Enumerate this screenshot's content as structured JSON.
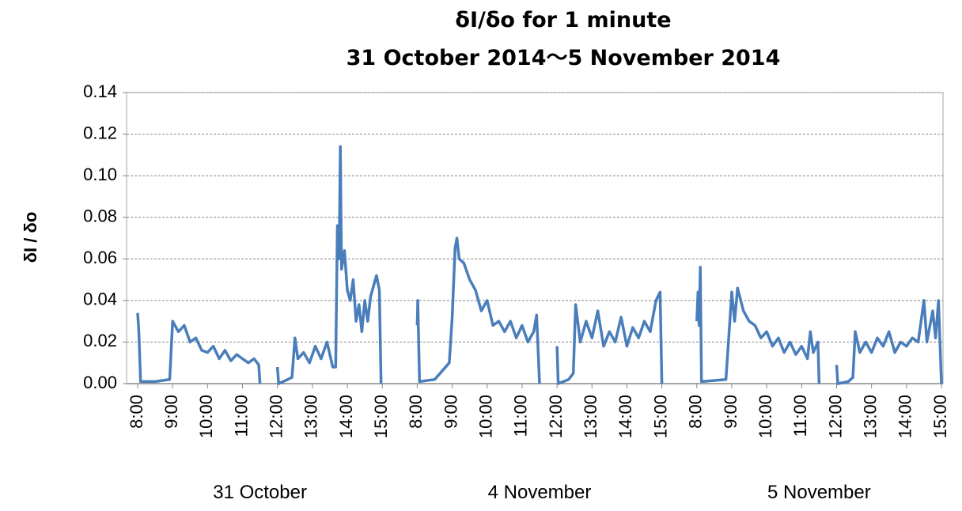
{
  "chart_data": {
    "type": "line",
    "title": "δI/δo for 1 minute",
    "subtitle": "31 October 2014～5 November 2014",
    "y_label": "δI / δo",
    "color": "#4a7ebb",
    "grid": true,
    "ylim": [
      0,
      0.14
    ],
    "yticks": [
      {
        "value": 0,
        "label": "0.00"
      },
      {
        "value": 0.02,
        "label": "0.02"
      },
      {
        "value": 0.04,
        "label": "0.04"
      },
      {
        "value": 0.06,
        "label": "0.06"
      },
      {
        "value": 0.08,
        "label": "0.08"
      },
      {
        "value": 0.1,
        "label": "0.10"
      },
      {
        "value": 0.12,
        "label": "0.12"
      },
      {
        "value": 0.14,
        "label": "0.14"
      }
    ],
    "series": [
      {
        "label": "31 October",
        "xticks": [
          "8:00",
          "9:00",
          "10:00",
          "11:00",
          "12:00",
          "13:00",
          "14:00",
          "15:00"
        ],
        "x": [
          "8:00",
          "8:02",
          "8:05",
          "8:30",
          "8:55",
          "9:00",
          "9:10",
          "9:20",
          "9:30",
          "9:40",
          "9:50",
          "10:00",
          "10:10",
          "10:20",
          "10:30",
          "10:40",
          "10:50",
          "11:00",
          "11:10",
          "11:20",
          "11:28",
          "11:30",
          "11:45",
          "12:00",
          "12:02",
          "12:10",
          "12:25",
          "12:30",
          "12:35",
          "12:45",
          "12:55",
          "13:05",
          "13:15",
          "13:25",
          "13:35",
          "13:40",
          "13:43",
          "13:46",
          "13:48",
          "13:50",
          "13:55",
          "14:00",
          "14:05",
          "14:10",
          "14:15",
          "14:20",
          "14:25",
          "14:30",
          "14:35",
          "14:40",
          "14:45",
          "14:50",
          "14:55",
          "14:58"
        ],
        "values": [
          0.034,
          0.025,
          0.001,
          0.001,
          0.002,
          0.03,
          0.025,
          0.028,
          0.02,
          0.022,
          0.016,
          0.015,
          0.018,
          0.012,
          0.016,
          0.011,
          0.014,
          0.012,
          0.01,
          0.012,
          0.009,
          0.0,
          null,
          0.008,
          0.0,
          0.001,
          0.003,
          0.022,
          0.012,
          0.015,
          0.01,
          0.018,
          0.012,
          0.02,
          0.008,
          0.008,
          0.076,
          0.06,
          0.114,
          0.055,
          0.064,
          0.045,
          0.04,
          0.05,
          0.03,
          0.038,
          0.025,
          0.04,
          0.03,
          0.042,
          0.047,
          0.052,
          0.045,
          0.0
        ]
      },
      {
        "label": "4 November",
        "xticks": [
          "8:00",
          "9:00",
          "10:00",
          "11:00",
          "12:00",
          "13:00",
          "14:00",
          "15:00"
        ],
        "x": [
          "8:00",
          "8:01",
          "8:04",
          "8:30",
          "8:55",
          "9:00",
          "9:05",
          "9:08",
          "9:12",
          "9:20",
          "9:30",
          "9:40",
          "9:50",
          "10:00",
          "10:10",
          "10:20",
          "10:30",
          "10:40",
          "10:50",
          "11:00",
          "11:10",
          "11:20",
          "11:25",
          "11:30",
          "11:45",
          "12:00",
          "12:02",
          "12:20",
          "12:28",
          "12:32",
          "12:40",
          "12:50",
          "13:00",
          "13:10",
          "13:20",
          "13:30",
          "13:40",
          "13:50",
          "14:00",
          "14:10",
          "14:20",
          "14:30",
          "14:40",
          "14:50",
          "14:57",
          "15:00"
        ],
        "values": [
          0.028,
          0.04,
          0.001,
          0.002,
          0.01,
          0.032,
          0.065,
          0.07,
          0.06,
          0.058,
          0.05,
          0.045,
          0.035,
          0.04,
          0.028,
          0.03,
          0.025,
          0.03,
          0.022,
          0.028,
          0.02,
          0.025,
          0.033,
          0.0,
          null,
          0.018,
          0.0,
          0.002,
          0.005,
          0.038,
          0.02,
          0.03,
          0.022,
          0.035,
          0.018,
          0.025,
          0.02,
          0.032,
          0.018,
          0.027,
          0.022,
          0.03,
          0.025,
          0.04,
          0.044,
          0.0
        ]
      },
      {
        "label": "5 November",
        "xticks": [
          "8:00",
          "9:00",
          "10:00",
          "11:00",
          "12:00",
          "13:00",
          "14:00",
          "15:00"
        ],
        "x": [
          "8:00",
          "8:02",
          "8:04",
          "8:06",
          "8:08",
          "8:50",
          "9:00",
          "9:05",
          "9:10",
          "9:20",
          "9:30",
          "9:40",
          "9:50",
          "10:00",
          "10:10",
          "10:20",
          "10:30",
          "10:40",
          "10:50",
          "11:00",
          "11:10",
          "11:15",
          "11:20",
          "11:28",
          "11:30",
          "11:45",
          "12:00",
          "12:02",
          "12:20",
          "12:28",
          "12:32",
          "12:40",
          "12:50",
          "13:00",
          "13:10",
          "13:20",
          "13:30",
          "13:40",
          "13:50",
          "14:00",
          "14:10",
          "14:20",
          "14:30",
          "14:35",
          "14:45",
          "14:50",
          "14:55",
          "15:00"
        ],
        "values": [
          0.03,
          0.044,
          0.028,
          0.056,
          0.001,
          0.002,
          0.044,
          0.03,
          0.046,
          0.035,
          0.03,
          0.028,
          0.022,
          0.025,
          0.018,
          0.022,
          0.015,
          0.02,
          0.014,
          0.018,
          0.012,
          0.025,
          0.015,
          0.02,
          0.0,
          null,
          0.009,
          0.0,
          0.001,
          0.003,
          0.025,
          0.015,
          0.02,
          0.015,
          0.022,
          0.018,
          0.025,
          0.015,
          0.02,
          0.018,
          0.022,
          0.02,
          0.04,
          0.02,
          0.035,
          0.022,
          0.04,
          0.0
        ]
      }
    ]
  }
}
